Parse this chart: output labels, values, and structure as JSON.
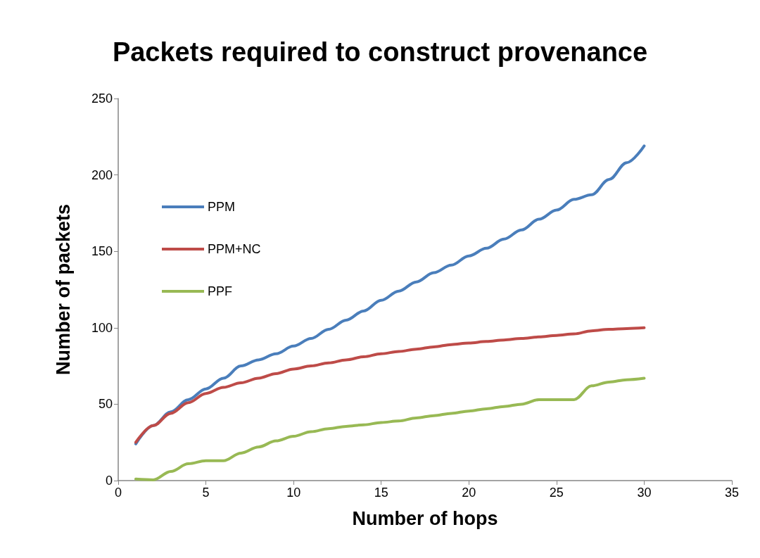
{
  "chart_data": {
    "type": "line",
    "title": "Packets required to construct provenance",
    "xlabel": "Number of hops",
    "ylabel": "Number of packets",
    "x": [
      1,
      2,
      3,
      4,
      5,
      6,
      7,
      8,
      9,
      10,
      11,
      12,
      13,
      14,
      15,
      16,
      17,
      18,
      19,
      20,
      21,
      22,
      23,
      24,
      25,
      26,
      27,
      28,
      29,
      30
    ],
    "series": [
      {
        "name": "PPM",
        "color": "#4a7ebb",
        "values": [
          24,
          36,
          45,
          53,
          60,
          67,
          75,
          79,
          83,
          88,
          93,
          99,
          105,
          111,
          118,
          124,
          130,
          136,
          141,
          147,
          152,
          158,
          164,
          171,
          177,
          184,
          187,
          197,
          208,
          219
        ]
      },
      {
        "name": "PPM+NC",
        "color": "#be4b48",
        "values": [
          25,
          36,
          44,
          51,
          57,
          61,
          64,
          67,
          70,
          73,
          75,
          77,
          79,
          81,
          83,
          84.5,
          86,
          87.5,
          89,
          90,
          91,
          92,
          93,
          94,
          95,
          96,
          98,
          99,
          99.5,
          100
        ]
      },
      {
        "name": "PPF",
        "color": "#98b954",
        "values": [
          1,
          0.5,
          6,
          11,
          13,
          13,
          18,
          22,
          26,
          29,
          32,
          34,
          35.5,
          36.5,
          38,
          39,
          41,
          42.5,
          44,
          45.5,
          47,
          48.5,
          50,
          53,
          53,
          53,
          62,
          64.5,
          66,
          67
        ]
      }
    ],
    "xlim": [
      0,
      35
    ],
    "xticks": [
      0,
      5,
      10,
      15,
      20,
      25,
      30,
      35
    ],
    "ylim": [
      0,
      250
    ],
    "yticks": [
      0,
      50,
      100,
      150,
      200,
      250
    ],
    "grid": false,
    "legend": "left",
    "marker": "none",
    "line_style": "solid"
  }
}
